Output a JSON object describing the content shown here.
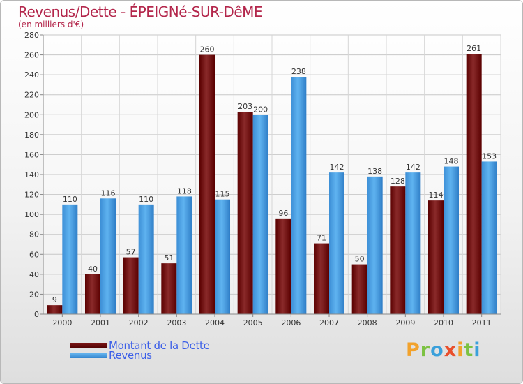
{
  "header": {
    "title": "Revenus/Dette - ÉPEIGNé-SUR-DêME",
    "subtitle": "(en milliers d'€)"
  },
  "legend": {
    "items": [
      {
        "label": "Montant de la Dette",
        "color": "#6e0a0a"
      },
      {
        "label": "Revenus",
        "color": "#4aa3e8"
      }
    ]
  },
  "logo": {
    "text": "Proxiti",
    "colors": [
      "#f2a22c",
      "#7cc242",
      "#3aa0db",
      "#e94f2c",
      "#f2a22c",
      "#7cc242",
      "#3aa0db"
    ]
  },
  "chart_data": {
    "type": "bar",
    "title": "Revenus/Dette - ÉPEIGNé-SUR-DêME",
    "ylabel": "(en milliers d'€)",
    "xlabel": "",
    "categories": [
      "2000",
      "2001",
      "2002",
      "2003",
      "2004",
      "2005",
      "2006",
      "2007",
      "2008",
      "2009",
      "2010",
      "2011"
    ],
    "series": [
      {
        "name": "Montant de la Dette",
        "color": "#6e0a0a",
        "values": [
          9,
          40,
          57,
          51,
          260,
          203,
          96,
          71,
          50,
          128,
          114,
          261
        ]
      },
      {
        "name": "Revenus",
        "color": "#4aa3e8",
        "values": [
          110,
          116,
          110,
          118,
          115,
          200,
          238,
          142,
          138,
          142,
          148,
          153
        ]
      }
    ],
    "ylim": [
      0,
      280
    ],
    "yticks": [
      0,
      20,
      40,
      60,
      80,
      100,
      120,
      140,
      160,
      180,
      200,
      220,
      240,
      260,
      280
    ],
    "grid": true
  }
}
